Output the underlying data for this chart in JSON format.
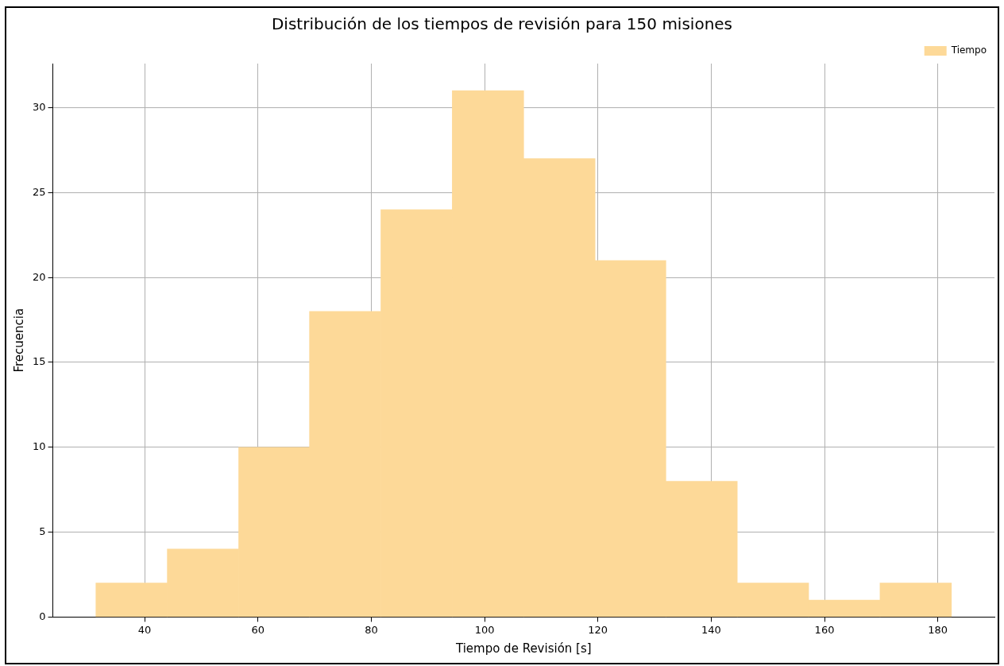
{
  "chart_data": {
    "type": "histogram",
    "title": "Distribución de los tiempos de revisión para 150 misiones",
    "xlabel": "Tiempo de Revisión [s]",
    "ylabel": "Frecuencia",
    "bins": [
      31.4,
      44.0,
      56.6,
      69.1,
      81.7,
      94.3,
      106.9,
      119.5,
      132.0,
      144.6,
      157.2,
      169.8,
      182.4
    ],
    "series": [
      {
        "name": "Tiempo",
        "color": "#fdd998",
        "values": [
          2,
          4,
          10,
          18,
          24,
          31,
          27,
          21,
          8,
          2,
          1,
          2
        ]
      }
    ],
    "xlim": [
      23.8,
      190.0
    ],
    "xticks": [
      40,
      60,
      80,
      100,
      120,
      140,
      160,
      180
    ],
    "ylim": [
      0,
      32.6
    ],
    "yticks": [
      0,
      5,
      10,
      15,
      20,
      25,
      30
    ],
    "grid": true,
    "legend": "top right"
  }
}
